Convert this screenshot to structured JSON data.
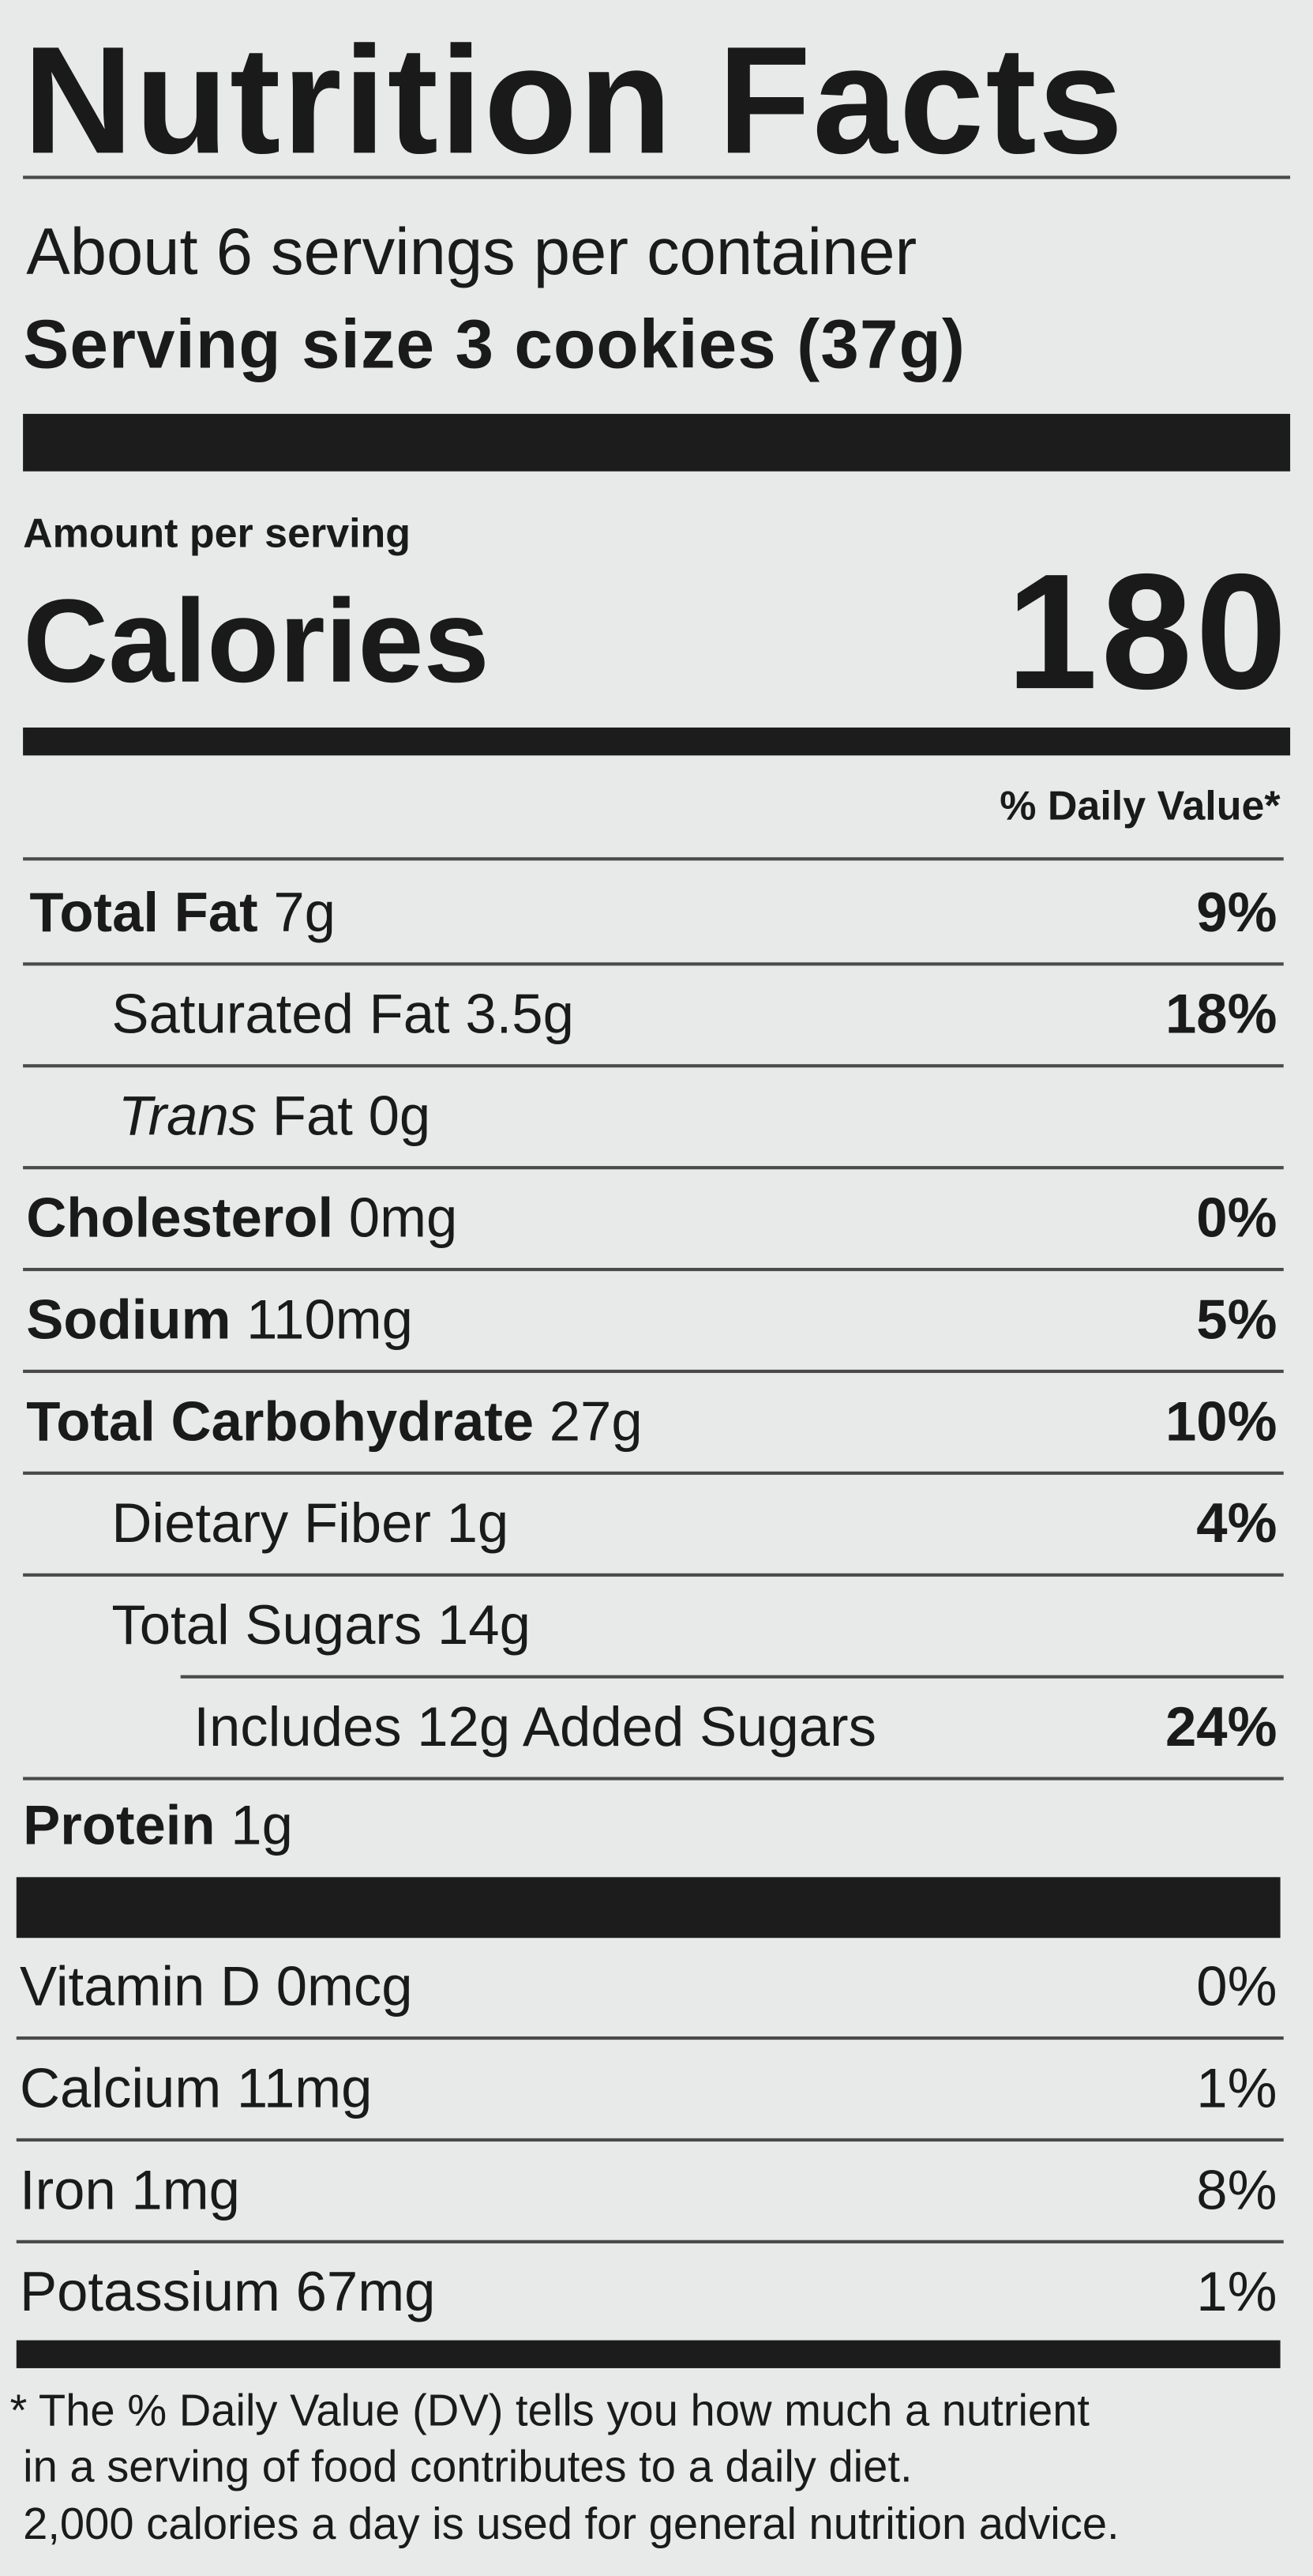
{
  "title": "Nutrition Facts",
  "servings_per_container": "About 6 servings per container",
  "serving_size_label": "Serving size",
  "serving_size_value": "3 cookies (37g)",
  "amount_per_serving": "Amount per serving",
  "calories_label": "Calories",
  "calories_value": "180",
  "dv_header": "% Daily Value*",
  "nutrients": [
    {
      "name": "Total Fat",
      "amount": "7g",
      "dv": "9%"
    },
    {
      "name": "Saturated Fat",
      "amount": "3.5g",
      "dv": "18%"
    },
    {
      "name_italic": "Trans",
      "name": "Fat",
      "amount": "0g",
      "dv": ""
    },
    {
      "name": "Cholesterol",
      "amount": "0mg",
      "dv": "0%"
    },
    {
      "name": "Sodium",
      "amount": "110mg",
      "dv": "5%"
    },
    {
      "name": "Total Carbohydrate",
      "amount": "27g",
      "dv": "10%"
    },
    {
      "name": "Dietary Fiber",
      "amount": "1g",
      "dv": "4%"
    },
    {
      "name": "Total Sugars",
      "amount": "14g",
      "dv": ""
    },
    {
      "name": "Includes 12g Added Sugars",
      "amount": "",
      "dv": "24%"
    },
    {
      "name": "Protein",
      "amount": "1g",
      "dv": ""
    }
  ],
  "micronutrients": [
    {
      "name": "Vitamin D 0mcg",
      "dv": "0%"
    },
    {
      "name": "Calcium 11mg",
      "dv": "1%"
    },
    {
      "name": "Iron 1mg",
      "dv": "8%"
    },
    {
      "name": "Potassium 67mg",
      "dv": "1%"
    }
  ],
  "footnote": [
    "* The % Daily Value (DV) tells you how much a nutrient",
    "in a serving of food contributes to a daily diet.",
    "2,000 calories a day is used for general nutrition advice."
  ]
}
